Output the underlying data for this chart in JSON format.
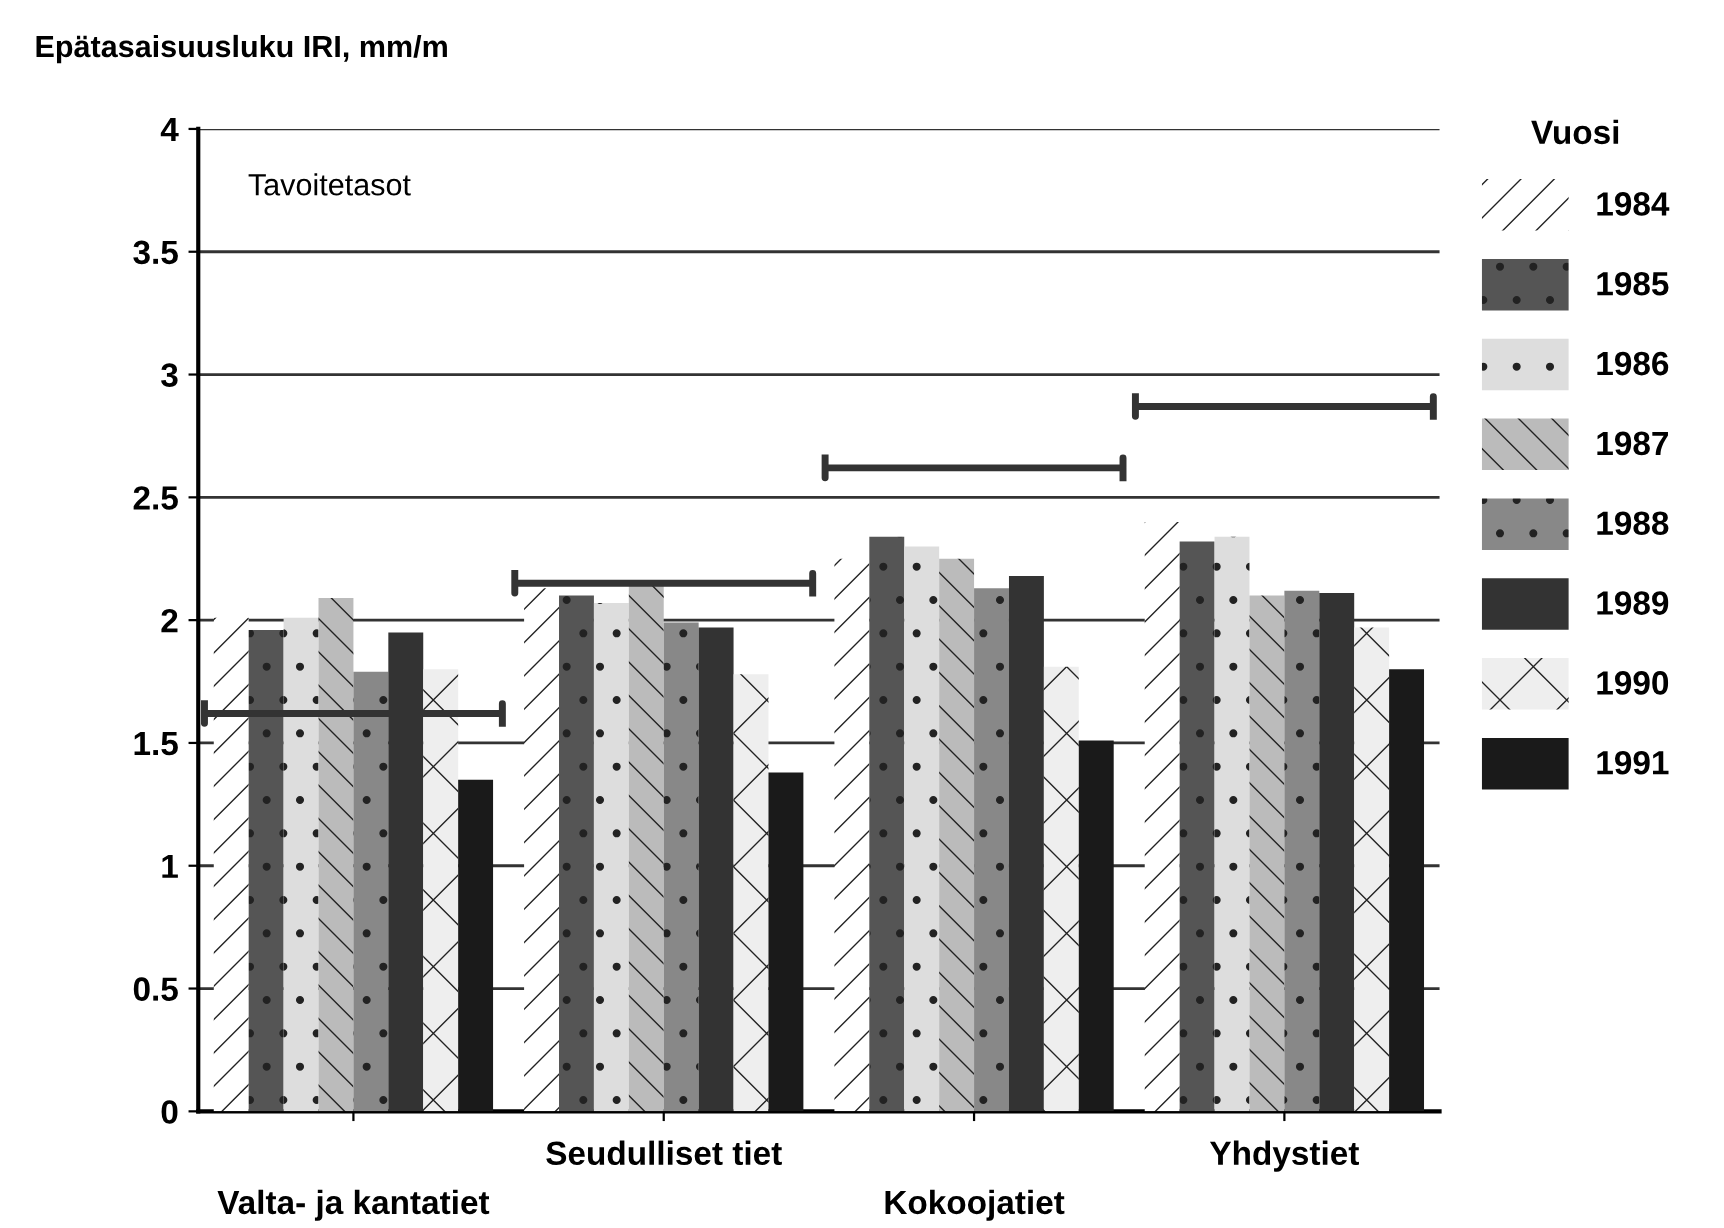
{
  "chart_data": {
    "type": "bar",
    "ylabel": "Epätasaisuusluku IRI, mm/m",
    "legend_title": "Vuosi",
    "categories": [
      "Valta- ja kantatiet",
      "Seudulliset tiet",
      "Kokoojatiet",
      "Yhdystiet"
    ],
    "ylim": [
      0,
      4
    ],
    "yticks": [
      0,
      0.5,
      1,
      1.5,
      2,
      2.5,
      3,
      3.5,
      4
    ],
    "grid": "y",
    "legend": "right",
    "annotations": [
      "Tavoitetasot"
    ],
    "series": [
      {
        "name": "1984",
        "color": "#ffffff",
        "values": [
          2.01,
          2.13,
          2.25,
          2.4
        ]
      },
      {
        "name": "1985",
        "color": "#555555",
        "values": [
          1.96,
          2.1,
          2.34,
          2.32
        ]
      },
      {
        "name": "1986",
        "color": "#dddddd",
        "values": [
          2.01,
          2.07,
          2.3,
          2.34
        ]
      },
      {
        "name": "1987",
        "color": "#bbbbbb",
        "values": [
          2.09,
          2.14,
          2.25,
          2.1
        ]
      },
      {
        "name": "1988",
        "color": "#888888",
        "values": [
          1.79,
          1.99,
          2.13,
          2.12
        ]
      },
      {
        "name": "1989",
        "color": "#333333",
        "values": [
          1.95,
          1.97,
          2.18,
          2.11
        ]
      },
      {
        "name": "1990",
        "color": "#eeeeee",
        "values": [
          1.8,
          1.78,
          1.81,
          1.97
        ]
      },
      {
        "name": "1991",
        "color": "#1a1a1a",
        "values": [
          1.35,
          1.38,
          1.51,
          1.8
        ]
      }
    ],
    "ref_lines": [
      {
        "axis": "y",
        "value": 1.62,
        "color": "#333333"
      },
      {
        "axis": "y",
        "value": 2.15,
        "color": "#333333"
      },
      {
        "axis": "y",
        "value": 2.62,
        "color": "#333333"
      },
      {
        "axis": "y",
        "value": 2.87,
        "color": "#333333"
      }
    ]
  }
}
